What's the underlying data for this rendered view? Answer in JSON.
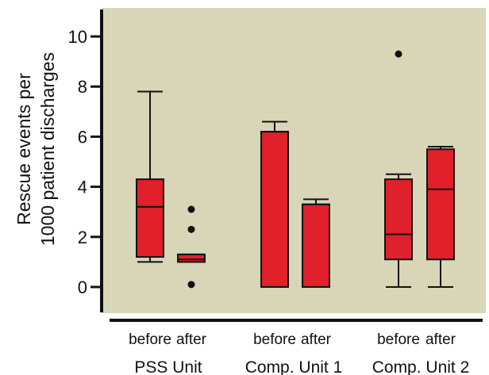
{
  "chart_data": {
    "type": "boxplot",
    "ylabel_line1": "Rescue events per",
    "ylabel_line2": "1000 patient discharges",
    "ylim": [
      -0.8,
      11
    ],
    "yticks": [
      0,
      2,
      4,
      6,
      8,
      10
    ],
    "ytick_labels": [
      "0",
      "2",
      "4",
      "6",
      "8",
      "10"
    ],
    "grid": false,
    "colors": {
      "background": "#d8d6b6",
      "box": "#e0202a",
      "stroke": "#111111"
    },
    "groups": [
      {
        "name": "PSS Unit",
        "boxes": [
          {
            "label": "before",
            "min": 1.0,
            "q1": 1.2,
            "median": 3.2,
            "q3": 4.3,
            "max": 7.8,
            "outliers": []
          },
          {
            "label": "after",
            "min": 1.0,
            "q1": 1.0,
            "median": 1.1,
            "q3": 1.3,
            "max": 1.3,
            "outliers": [
              3.1,
              2.3,
              0.1
            ]
          }
        ]
      },
      {
        "name": "Comp. Unit 1",
        "boxes": [
          {
            "label": "before",
            "min": 0.0,
            "q1": 0.0,
            "median": 6.2,
            "q3": 6.2,
            "max": 6.6,
            "outliers": []
          },
          {
            "label": "after",
            "min": 0.0,
            "q1": 0.0,
            "median": 3.3,
            "q3": 3.3,
            "max": 3.5,
            "outliers": []
          }
        ]
      },
      {
        "name": "Comp. Unit 2",
        "boxes": [
          {
            "label": "before",
            "min": 0.0,
            "q1": 1.1,
            "median": 2.1,
            "q3": 4.3,
            "max": 4.5,
            "outliers": [
              9.3
            ]
          },
          {
            "label": "after",
            "min": 0.0,
            "q1": 1.1,
            "median": 3.9,
            "q3": 5.5,
            "max": 5.6,
            "outliers": []
          }
        ]
      }
    ]
  }
}
